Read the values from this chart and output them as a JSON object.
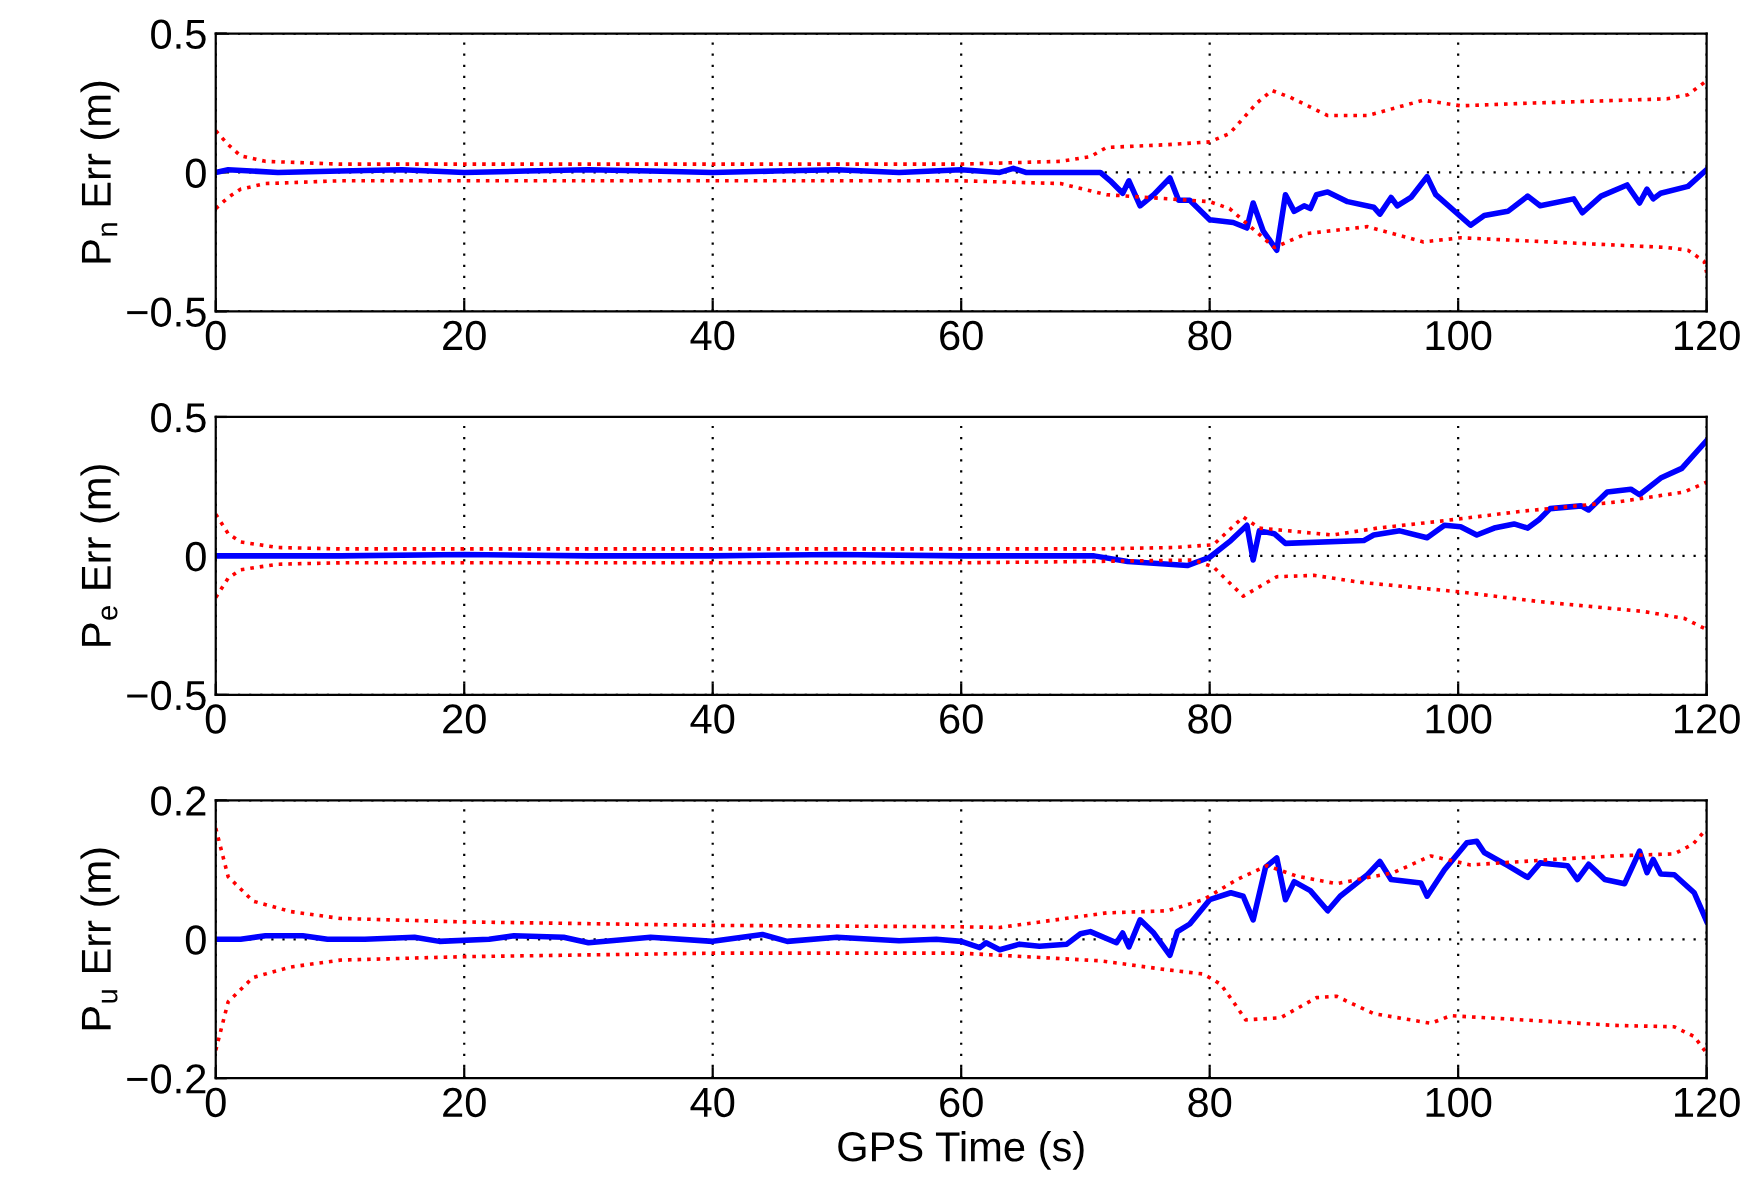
{
  "chart_data": [
    {
      "type": "line",
      "ylabel": "P$_{n}$ Err (m)",
      "xlim": [
        0,
        120
      ],
      "xticks": [
        0,
        20,
        40,
        60,
        80,
        100,
        120
      ],
      "ylim": [
        -0.5,
        0.5
      ],
      "yticks": [
        -0.5,
        0,
        0.5
      ],
      "grid": true,
      "series": [
        {
          "color": "#0000ff",
          "line_style": "solid",
          "x": [
            0,
            1,
            5,
            10,
            15,
            20,
            25,
            30,
            35,
            40,
            45,
            50,
            55,
            60,
            63.1,
            64.2,
            65.2,
            68.5,
            71.2,
            72,
            73,
            73.5,
            74.4,
            75.5,
            76.8,
            77.5,
            78.4,
            80,
            81.9,
            83,
            83.5,
            84.3,
            85.4,
            86.1,
            86.8,
            87.6,
            88.1,
            88.6,
            89.5,
            91.1,
            93.2,
            93.7,
            94.6,
            95.1,
            96.2,
            97.5,
            98.2,
            101,
            102.1,
            104,
            105.6,
            106.6,
            109.3,
            110,
            111.5,
            113.6,
            114.6,
            115.2,
            115.7,
            116.3,
            118.5,
            120
          ],
          "values": [
            0,
            0.01,
            0,
            0.005,
            0.01,
            0,
            0.005,
            0.01,
            0.005,
            0,
            0.005,
            0.01,
            0,
            0.01,
            0,
            0.015,
            0,
            0,
            0,
            -0.03,
            -0.075,
            -0.03,
            -0.12,
            -0.08,
            -0.02,
            -0.1,
            -0.1,
            -0.17,
            -0.18,
            -0.2,
            -0.11,
            -0.21,
            -0.28,
            -0.08,
            -0.14,
            -0.12,
            -0.13,
            -0.08,
            -0.07,
            -0.105,
            -0.125,
            -0.15,
            -0.09,
            -0.12,
            -0.09,
            -0.015,
            -0.08,
            -0.19,
            -0.155,
            -0.14,
            -0.085,
            -0.12,
            -0.095,
            -0.145,
            -0.085,
            -0.045,
            -0.11,
            -0.06,
            -0.095,
            -0.075,
            -0.05,
            0.01
          ]
        },
        {
          "color": "#ff0000",
          "line_style": "dotted",
          "x": [
            0,
            1,
            2,
            4,
            10,
            60,
            68,
            70.4,
            71.7,
            76.6,
            80,
            81.6,
            83.8,
            85,
            86.5,
            89.5,
            92.7,
            97.2,
            100.2,
            106.1,
            116.8,
            118.5,
            120
          ],
          "values": [
            0.15,
            0.1,
            0.06,
            0.04,
            0.03,
            0.03,
            0.04,
            0.057,
            0.09,
            0.1,
            0.11,
            0.14,
            0.25,
            0.295,
            0.27,
            0.205,
            0.205,
            0.26,
            0.24,
            0.25,
            0.265,
            0.28,
            0.33
          ]
        },
        {
          "color": "#ff0000",
          "line_style": "dotted",
          "x": [
            0,
            1,
            2,
            4,
            10,
            60,
            68,
            71.7,
            80,
            81.6,
            85.2,
            87.8,
            92.7,
            97.2,
            100.2,
            116.8,
            118.5,
            119.8,
            120
          ],
          "values": [
            -0.13,
            -0.09,
            -0.06,
            -0.04,
            -0.03,
            -0.03,
            -0.04,
            -0.08,
            -0.105,
            -0.13,
            -0.27,
            -0.22,
            -0.195,
            -0.25,
            -0.235,
            -0.27,
            -0.28,
            -0.32,
            -0.36
          ]
        }
      ]
    },
    {
      "type": "line",
      "ylabel": "P$_{e}$ Err (m)",
      "xlim": [
        0,
        120
      ],
      "xticks": [
        0,
        20,
        40,
        60,
        80,
        100,
        120
      ],
      "ylim": [
        -0.5,
        0.5
      ],
      "yticks": [
        -0.5,
        0,
        0.5
      ],
      "grid": true,
      "series": [
        {
          "color": "#0000ff",
          "line_style": "solid",
          "x": [
            0,
            10,
            20,
            30,
            40,
            50,
            60,
            63.1,
            70.7,
            73.4,
            78.2,
            80,
            81.7,
            83,
            83.5,
            84,
            85.2,
            86.1,
            92.4,
            93.2,
            95.3,
            97.5,
            98.9,
            100.2,
            101.5,
            102.9,
            104.5,
            105.6,
            106.5,
            107.4,
            109.9,
            110.5,
            112,
            113.9,
            114.6,
            116.3,
            118,
            120
          ],
          "values": [
            0,
            0,
            0.005,
            0,
            0,
            0.005,
            0,
            0,
            0,
            -0.02,
            -0.035,
            -0.005,
            0.055,
            0.11,
            -0.015,
            0.09,
            0.08,
            0.045,
            0.055,
            0.075,
            0.09,
            0.065,
            0.11,
            0.105,
            0.075,
            0.1,
            0.115,
            0.1,
            0.13,
            0.17,
            0.18,
            0.165,
            0.23,
            0.24,
            0.22,
            0.28,
            0.315,
            0.415
          ]
        },
        {
          "color": "#ff0000",
          "line_style": "dotted",
          "x": [
            0,
            1,
            2,
            5,
            10,
            60,
            70.7,
            77.1,
            80.3,
            82.7,
            84,
            89.9,
            93.5,
            98.6,
            105,
            113,
            118.2,
            120
          ],
          "values": [
            0.15,
            0.08,
            0.05,
            0.03,
            0.025,
            0.025,
            0.025,
            0.03,
            0.04,
            0.14,
            0.1,
            0.075,
            0.1,
            0.125,
            0.16,
            0.195,
            0.23,
            0.265
          ]
        },
        {
          "color": "#ff0000",
          "line_style": "dotted",
          "x": [
            0,
            1,
            2,
            5,
            10,
            60,
            70.7,
            78.7,
            80.3,
            82.7,
            85.4,
            88.4,
            92.1,
            100.2,
            106.6,
            114.9,
            118.2,
            120
          ],
          "values": [
            -0.15,
            -0.08,
            -0.05,
            -0.03,
            -0.025,
            -0.025,
            -0.02,
            -0.015,
            -0.04,
            -0.145,
            -0.075,
            -0.07,
            -0.095,
            -0.13,
            -0.165,
            -0.2,
            -0.225,
            -0.265
          ]
        }
      ]
    },
    {
      "type": "line",
      "ylabel": "P$_{u}$ Err (m)",
      "xlabel": "GPS Time (s)",
      "xlim": [
        0,
        120
      ],
      "xticks": [
        0,
        20,
        40,
        60,
        80,
        100,
        120
      ],
      "ylim": [
        -0.2,
        0.2
      ],
      "yticks": [
        -0.2,
        0,
        0.2
      ],
      "grid": true,
      "series": [
        {
          "color": "#0000ff",
          "line_style": "solid",
          "x": [
            0,
            2,
            4,
            7,
            9,
            12,
            16,
            18,
            22,
            24,
            28,
            30,
            35,
            40,
            44,
            46,
            50,
            55,
            58,
            60,
            61.5,
            62,
            63.1,
            64.7,
            66.3,
            68.5,
            69.6,
            70.4,
            72.5,
            73,
            73.5,
            74.4,
            75.5,
            76.8,
            77.4,
            78.4,
            80,
            81.7,
            82.7,
            83.5,
            84.5,
            85.4,
            86.1,
            86.8,
            88.1,
            89.5,
            90.5,
            92.7,
            93.7,
            94.6,
            97,
            97.5,
            98.9,
            100.7,
            101.5,
            102.1,
            104,
            105.6,
            106.6,
            108.8,
            109.6,
            110.5,
            111.8,
            113.4,
            114.6,
            115.2,
            115.7,
            116.3,
            117.4,
            119,
            120
          ],
          "values": [
            0,
            0,
            0.005,
            0.005,
            0,
            0,
            0.003,
            -0.003,
            0,
            0.005,
            0.003,
            -0.005,
            0.003,
            -0.003,
            0.007,
            -0.003,
            0.003,
            -0.002,
            0,
            -0.003,
            -0.012,
            -0.005,
            -0.015,
            -0.007,
            -0.01,
            -0.007,
            0.008,
            0.011,
            -0.005,
            0.009,
            -0.011,
            0.028,
            0.009,
            -0.023,
            0.011,
            0.022,
            0.057,
            0.067,
            0.062,
            0.028,
            0.104,
            0.117,
            0.057,
            0.083,
            0.07,
            0.041,
            0.062,
            0.093,
            0.112,
            0.086,
            0.081,
            0.062,
            0.1,
            0.139,
            0.141,
            0.125,
            0.106,
            0.089,
            0.11,
            0.106,
            0.086,
            0.108,
            0.086,
            0.08,
            0.127,
            0.096,
            0.115,
            0.094,
            0.093,
            0.067,
            0.026
          ]
        },
        {
          "color": "#ff0000",
          "line_style": "dotted",
          "x": [
            0,
            1,
            3,
            6,
            10,
            20,
            40,
            60,
            63.1,
            71.7,
            76.6,
            79.5,
            82.2,
            84.6,
            87,
            90.2,
            94.8,
            97.8,
            101,
            107.7,
            112.6,
            117.4,
            118.9,
            120
          ],
          "values": [
            0.16,
            0.09,
            0.055,
            0.04,
            0.03,
            0.025,
            0.02,
            0.018,
            0.017,
            0.038,
            0.041,
            0.057,
            0.086,
            0.106,
            0.091,
            0.08,
            0.096,
            0.12,
            0.107,
            0.115,
            0.12,
            0.123,
            0.137,
            0.159
          ]
        },
        {
          "color": "#ff0000",
          "line_style": "dotted",
          "x": [
            0,
            1,
            3,
            6,
            10,
            20,
            40,
            60,
            63.1,
            71.2,
            76.6,
            79.5,
            80.9,
            81.9,
            82.9,
            85.7,
            88.6,
            90.2,
            93.2,
            97.8,
            99.4,
            106.1,
            112.6,
            117.4,
            119,
            120
          ],
          "values": [
            -0.16,
            -0.09,
            -0.055,
            -0.04,
            -0.03,
            -0.025,
            -0.02,
            -0.02,
            -0.023,
            -0.031,
            -0.044,
            -0.05,
            -0.065,
            -0.09,
            -0.116,
            -0.113,
            -0.084,
            -0.082,
            -0.107,
            -0.121,
            -0.11,
            -0.117,
            -0.124,
            -0.126,
            -0.14,
            -0.164
          ]
        }
      ]
    }
  ]
}
